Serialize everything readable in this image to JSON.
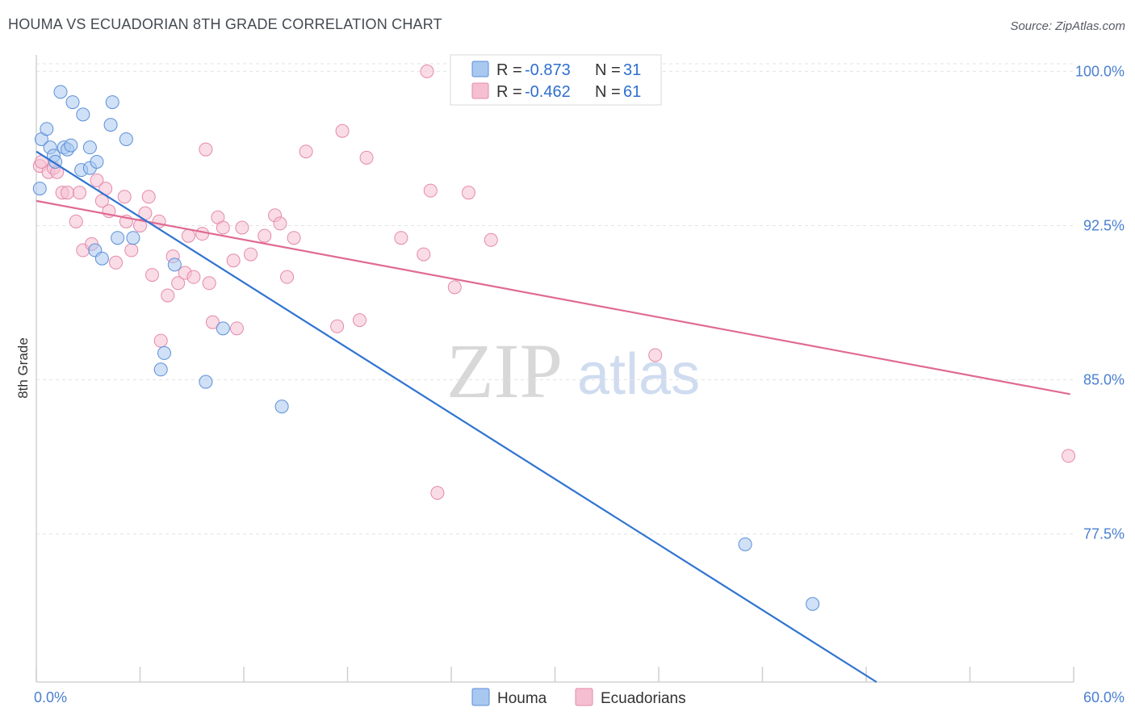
{
  "title": "HOUMA VS ECUADORIAN 8TH GRADE CORRELATION CHART",
  "source": "Source: ZipAtlas.com",
  "watermark": {
    "zip": "ZIP",
    "atlas": "atlas"
  },
  "chart_data": {
    "type": "scatter",
    "xlabel": "",
    "ylabel": "8th Grade",
    "xlim": [
      0,
      60
    ],
    "ylim": [
      70.3,
      100.8
    ],
    "x_tick_labels": [
      "0.0%",
      "60.0%"
    ],
    "y_ticks": [
      77.5,
      85.0,
      92.5,
      100.0
    ],
    "y_tick_labels": [
      "77.5%",
      "85.0%",
      "92.5%",
      "100.0%"
    ],
    "grid": true,
    "colors": {
      "houma": "#2f74d0",
      "houma_fill": "#a9c8f0",
      "ecuadorians": "#e06a93",
      "ecuadorians_fill": "#f5bfd1"
    },
    "legend_top": [
      {
        "r_label": "R =",
        "r": "-0.873",
        "n_label": "N =",
        "n": "31"
      },
      {
        "r_label": "R =",
        "r": "-0.462",
        "n_label": "N =",
        "n": "61"
      }
    ],
    "series": [
      {
        "name": "Houma",
        "points": [
          [
            0.2,
            94.3
          ],
          [
            0.3,
            96.7
          ],
          [
            0.6,
            97.2
          ],
          [
            0.8,
            96.3
          ],
          [
            1.0,
            95.9
          ],
          [
            1.1,
            95.6
          ],
          [
            1.4,
            99.0
          ],
          [
            1.6,
            96.3
          ],
          [
            1.8,
            96.2
          ],
          [
            2.0,
            96.4
          ],
          [
            2.1,
            98.5
          ],
          [
            2.7,
            97.9
          ],
          [
            2.6,
            95.2
          ],
          [
            3.1,
            95.3
          ],
          [
            3.1,
            96.3
          ],
          [
            3.5,
            95.6
          ],
          [
            3.4,
            91.3
          ],
          [
            3.8,
            90.9
          ],
          [
            4.4,
            98.5
          ],
          [
            4.3,
            97.4
          ],
          [
            5.2,
            96.7
          ],
          [
            4.7,
            91.9
          ],
          [
            5.6,
            91.9
          ],
          [
            7.2,
            85.5
          ],
          [
            7.4,
            86.3
          ],
          [
            8.0,
            90.6
          ],
          [
            9.8,
            84.9
          ],
          [
            10.8,
            87.5
          ],
          [
            14.2,
            83.7
          ],
          [
            41.0,
            77.0
          ],
          [
            44.9,
            74.1
          ]
        ],
        "trend": [
          [
            0.0,
            96.1
          ],
          [
            48.6,
            70.3
          ]
        ]
      },
      {
        "name": "Ecuadorians",
        "points": [
          [
            0.2,
            95.4
          ],
          [
            0.3,
            95.6
          ],
          [
            0.7,
            95.1
          ],
          [
            1.0,
            95.3
          ],
          [
            1.2,
            95.1
          ],
          [
            1.5,
            94.1
          ],
          [
            1.8,
            94.1
          ],
          [
            2.3,
            92.7
          ],
          [
            2.5,
            94.1
          ],
          [
            2.7,
            91.3
          ],
          [
            3.2,
            91.6
          ],
          [
            3.5,
            94.7
          ],
          [
            3.8,
            93.7
          ],
          [
            4.0,
            94.3
          ],
          [
            4.2,
            93.2
          ],
          [
            4.6,
            90.7
          ],
          [
            5.1,
            93.9
          ],
          [
            5.2,
            92.7
          ],
          [
            5.5,
            91.3
          ],
          [
            6.0,
            92.5
          ],
          [
            6.3,
            93.1
          ],
          [
            6.5,
            93.9
          ],
          [
            6.7,
            90.1
          ],
          [
            7.1,
            92.7
          ],
          [
            7.2,
            86.9
          ],
          [
            7.6,
            89.1
          ],
          [
            7.9,
            91.0
          ],
          [
            8.2,
            89.7
          ],
          [
            8.6,
            90.2
          ],
          [
            8.8,
            92.0
          ],
          [
            9.1,
            90.0
          ],
          [
            9.6,
            92.1
          ],
          [
            9.8,
            96.2
          ],
          [
            10.0,
            89.7
          ],
          [
            10.2,
            87.8
          ],
          [
            10.5,
            92.9
          ],
          [
            10.8,
            92.4
          ],
          [
            11.4,
            90.8
          ],
          [
            11.6,
            87.5
          ],
          [
            11.9,
            92.4
          ],
          [
            12.4,
            91.1
          ],
          [
            13.2,
            92.0
          ],
          [
            13.8,
            93.0
          ],
          [
            14.1,
            92.6
          ],
          [
            14.5,
            90.0
          ],
          [
            14.9,
            91.9
          ],
          [
            15.6,
            96.1
          ],
          [
            17.4,
            87.6
          ],
          [
            17.7,
            97.1
          ],
          [
            18.7,
            87.9
          ],
          [
            19.1,
            95.8
          ],
          [
            21.1,
            91.9
          ],
          [
            22.4,
            91.1
          ],
          [
            22.6,
            100.0
          ],
          [
            22.8,
            94.2
          ],
          [
            23.2,
            79.5
          ],
          [
            24.2,
            89.5
          ],
          [
            25.0,
            94.1
          ],
          [
            26.3,
            91.8
          ],
          [
            35.8,
            86.2
          ],
          [
            59.7,
            81.3
          ]
        ],
        "trend": [
          [
            0.0,
            93.7
          ],
          [
            59.8,
            84.3
          ]
        ]
      }
    ]
  }
}
